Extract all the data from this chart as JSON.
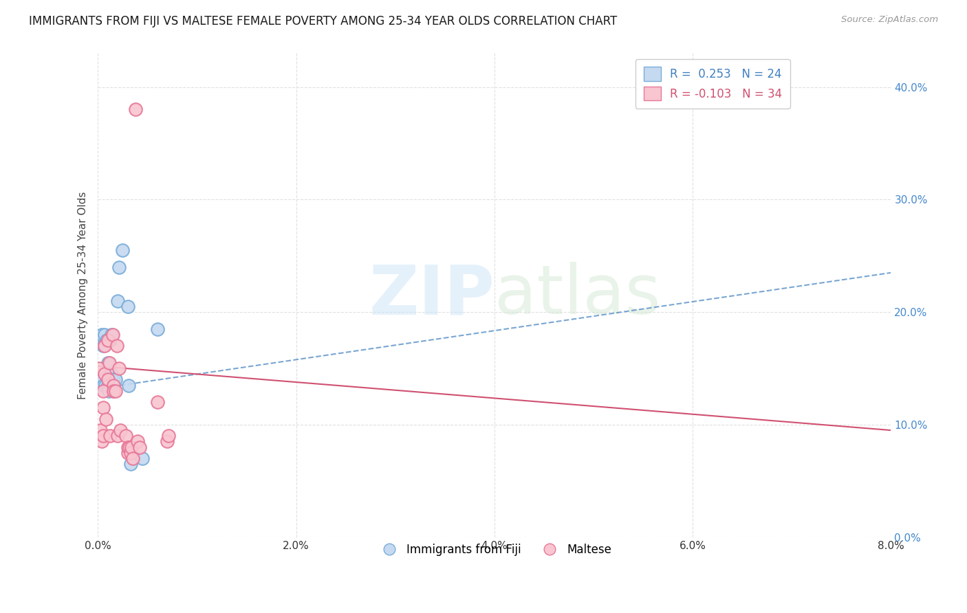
{
  "title": "IMMIGRANTS FROM FIJI VS MALTESE FEMALE POVERTY AMONG 25-34 YEAR OLDS CORRELATION CHART",
  "source": "Source: ZipAtlas.com",
  "ylabel": "Female Poverty Among 25-34 Year Olds",
  "fiji_R": 0.253,
  "fiji_N": 24,
  "maltese_R": -0.103,
  "maltese_N": 34,
  "fiji_fill": "#c5d9f0",
  "fiji_edge": "#7aadda",
  "maltese_fill": "#f8c5d0",
  "maltese_edge": "#e87898",
  "trend_fiji_color": "#4080c0",
  "trend_maltese_color": "#d05070",
  "fiji_x": [
    0.00025,
    0.0004,
    0.0005,
    0.00055,
    0.00065,
    0.00075,
    0.0009,
    0.001,
    0.00105,
    0.0011,
    0.00125,
    0.00135,
    0.0014,
    0.00155,
    0.0016,
    0.00175,
    0.002,
    0.0021,
    0.0025,
    0.003,
    0.0031,
    0.0033,
    0.0045,
    0.006
  ],
  "fiji_y": [
    0.14,
    0.18,
    0.135,
    0.17,
    0.18,
    0.135,
    0.175,
    0.135,
    0.155,
    0.13,
    0.175,
    0.18,
    0.145,
    0.14,
    0.13,
    0.14,
    0.21,
    0.24,
    0.255,
    0.205,
    0.135,
    0.065,
    0.07,
    0.185
  ],
  "maltese_x": [
    0.00015,
    0.00025,
    0.0004,
    0.0005,
    0.0005,
    0.00055,
    0.00065,
    0.0007,
    0.0008,
    0.001,
    0.001,
    0.00115,
    0.00125,
    0.0015,
    0.00155,
    0.0016,
    0.0018,
    0.0019,
    0.002,
    0.0021,
    0.00225,
    0.003,
    0.0028,
    0.003,
    0.0032,
    0.0033,
    0.0034,
    0.0035,
    0.004,
    0.0038,
    0.0042,
    0.006,
    0.007,
    0.0071
  ],
  "maltese_y": [
    0.15,
    0.095,
    0.085,
    0.13,
    0.09,
    0.115,
    0.145,
    0.17,
    0.105,
    0.14,
    0.175,
    0.155,
    0.09,
    0.18,
    0.135,
    0.13,
    0.13,
    0.17,
    0.09,
    0.15,
    0.095,
    0.075,
    0.09,
    0.08,
    0.08,
    0.075,
    0.08,
    0.07,
    0.085,
    0.38,
    0.08,
    0.12,
    0.085,
    0.09
  ],
  "xlim": [
    0,
    0.08
  ],
  "ylim": [
    0,
    0.43
  ],
  "fiji_trend_y0": 0.132,
  "fiji_trend_y1": 0.235,
  "maltese_trend_y0": 0.152,
  "maltese_trend_y1": 0.095,
  "bg": "#ffffff",
  "grid_color": "#e0e0e0",
  "ytick_color": "#4488cc",
  "xtick_color": "#333333"
}
